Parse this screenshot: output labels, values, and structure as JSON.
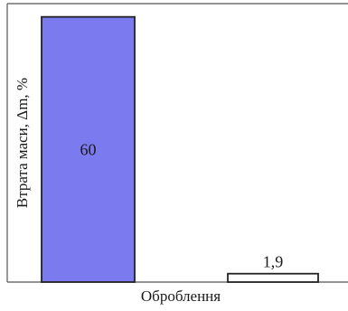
{
  "chart_data": {
    "type": "bar",
    "categories": [
      "",
      ""
    ],
    "values": [
      60,
      1.9
    ],
    "data_labels": [
      "60",
      "1,9"
    ],
    "title": "",
    "xlabel": "Оброблення",
    "ylabel": "Втрата маси, Δm, %",
    "ylim": [
      0,
      63
    ],
    "grid": false,
    "legend": "none",
    "colors": {
      "bar_fills": [
        "#7b7bef",
        "#ffffff"
      ],
      "bar_stroke": "#222222",
      "frame": "#555555"
    }
  }
}
